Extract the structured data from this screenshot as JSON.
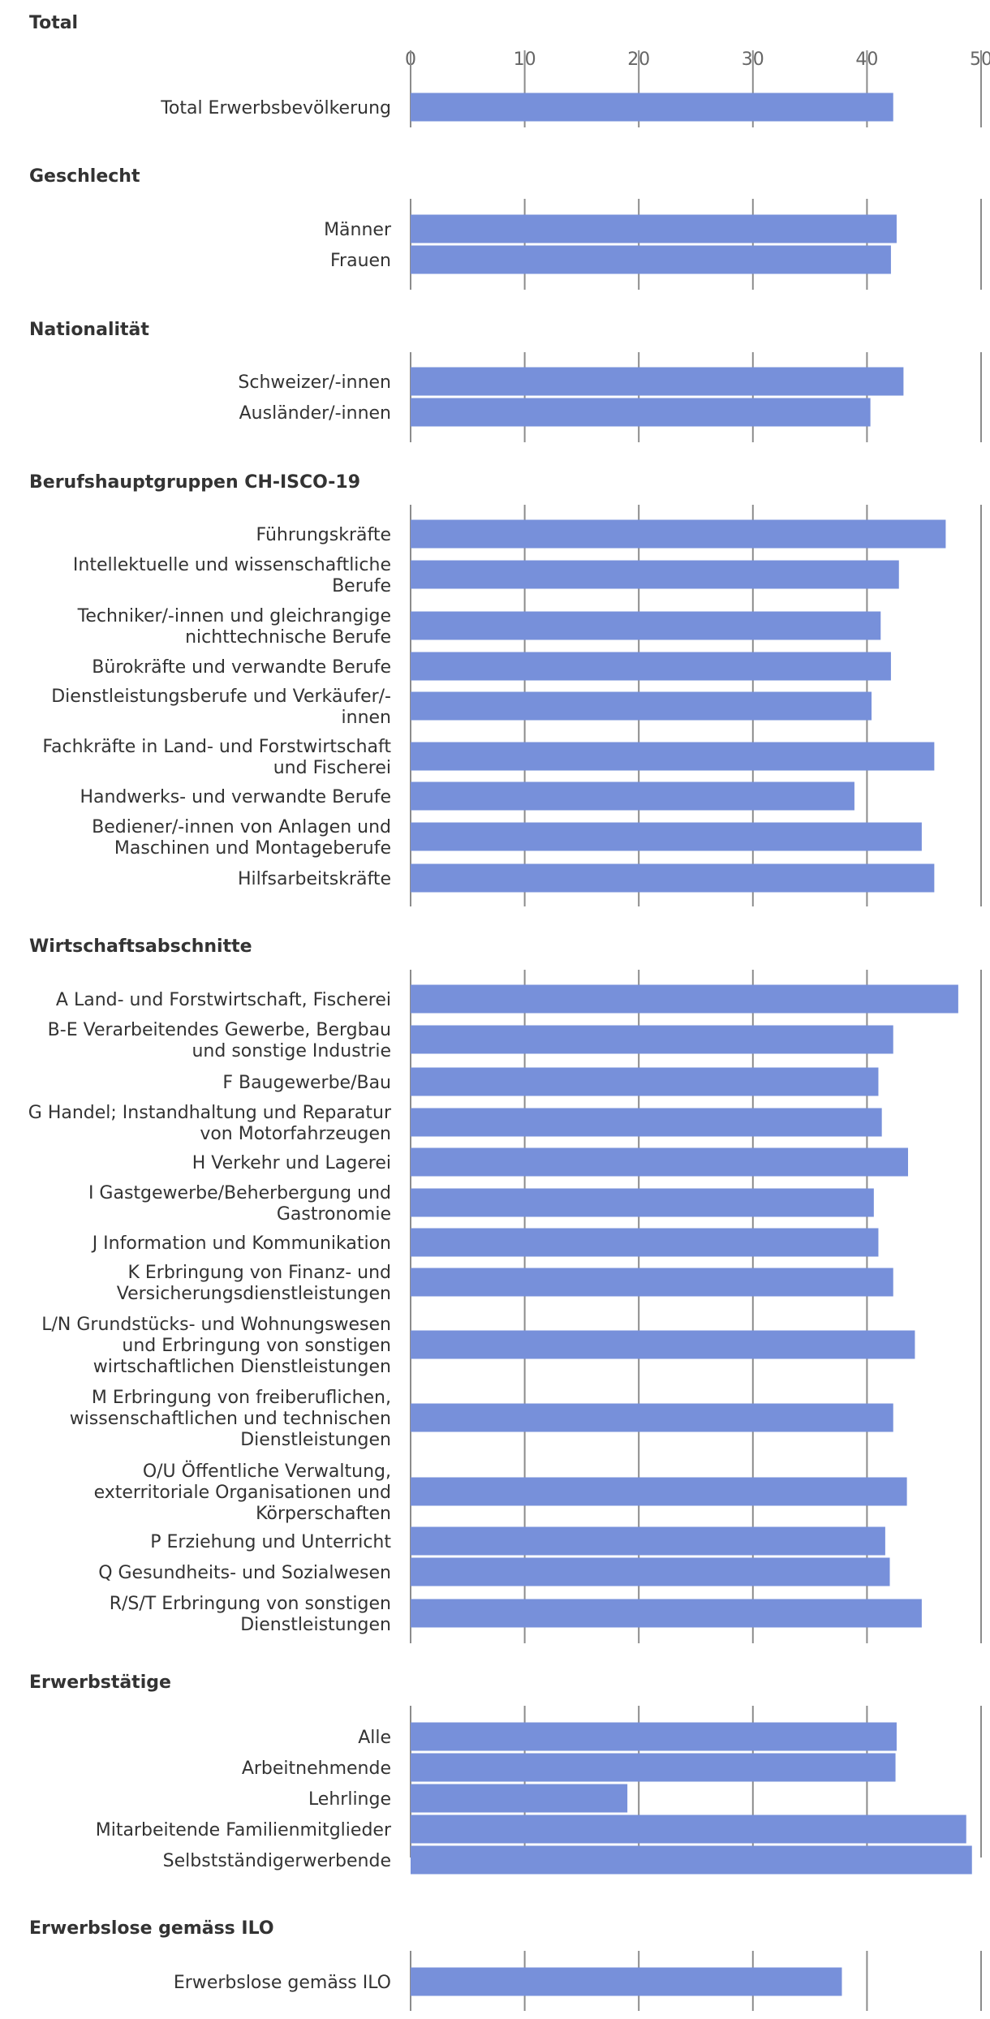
{
  "chart_data": {
    "type": "bar",
    "orientation": "horizontal",
    "xlim": [
      0,
      50
    ],
    "ticks": [
      0,
      10,
      20,
      30,
      40,
      50
    ],
    "bar_color": "#7790da",
    "grid_color": "#8c8c8c",
    "text_color": "#333333",
    "sections": [
      {
        "title": "Total",
        "rows": [
          {
            "label": [
              "Total Erwerbsbevölkerung"
            ],
            "value": 42.3
          }
        ]
      },
      {
        "title": "Geschlecht",
        "rows": [
          {
            "label": [
              "Männer"
            ],
            "value": 42.6
          },
          {
            "label": [
              "Frauen"
            ],
            "value": 42.1
          }
        ]
      },
      {
        "title": "Nationalität",
        "rows": [
          {
            "label": [
              "Schweizer/-innen"
            ],
            "value": 43.2
          },
          {
            "label": [
              "Ausländer/-innen"
            ],
            "value": 40.3
          }
        ]
      },
      {
        "title": "Berufshauptgruppen CH-ISCO-19",
        "rows": [
          {
            "label": [
              "Führungskräfte"
            ],
            "value": 46.9
          },
          {
            "label": [
              "Intellektuelle und wissenschaftliche",
              "Berufe"
            ],
            "value": 42.8
          },
          {
            "label": [
              "Techniker/-innen und gleichrangige",
              "nichttechnische Berufe"
            ],
            "value": 41.2
          },
          {
            "label": [
              "Bürokräfte und verwandte Berufe"
            ],
            "value": 42.1
          },
          {
            "label": [
              "Dienstleistungsberufe und Verkäufer/-",
              "innen"
            ],
            "value": 40.4
          },
          {
            "label": [
              "Fachkräfte in Land- und Forstwirtschaft",
              "und Fischerei"
            ],
            "value": 45.9
          },
          {
            "label": [
              "Handwerks- und verwandte Berufe"
            ],
            "value": 38.9
          },
          {
            "label": [
              "Bediener/-innen von Anlagen und",
              "Maschinen und Montageberufe"
            ],
            "value": 44.8
          },
          {
            "label": [
              "Hilfsarbeitskräfte"
            ],
            "value": 45.9
          }
        ]
      },
      {
        "title": "Wirtschaftsabschnitte",
        "rows": [
          {
            "label": [
              "A Land- und Forstwirtschaft, Fischerei"
            ],
            "value": 48.0
          },
          {
            "label": [
              "B-E Verarbeitendes Gewerbe, Bergbau",
              "und sonstige Industrie"
            ],
            "value": 42.3
          },
          {
            "label": [
              "F Baugewerbe/Bau"
            ],
            "value": 41.0
          },
          {
            "label": [
              "G Handel; Instandhaltung und Reparatur",
              "von Motorfahrzeugen"
            ],
            "value": 41.3
          },
          {
            "label": [
              "H Verkehr und Lagerei"
            ],
            "value": 43.6
          },
          {
            "label": [
              "I Gastgewerbe/Beherbergung und",
              "Gastronomie"
            ],
            "value": 40.6
          },
          {
            "label": [
              "J Information und Kommunikation"
            ],
            "value": 41.0
          },
          {
            "label": [
              "K Erbringung von Finanz- und",
              "Versicherungsdienstleistungen"
            ],
            "value": 42.3
          },
          {
            "label": [
              "L/N Grundstücks- und Wohnungswesen",
              "und Erbringung von sonstigen",
              "wirtschaftlichen Dienstleistungen"
            ],
            "value": 44.2
          },
          {
            "label": [
              "M Erbringung von freiberuflichen,",
              "wissenschaftlichen und technischen",
              "Dienstleistungen"
            ],
            "value": 42.3
          },
          {
            "label": [
              "O/U Öffentliche Verwaltung,",
              "exterritoriale Organisationen und",
              "Körperschaften"
            ],
            "value": 43.5
          },
          {
            "label": [
              "P Erziehung und Unterricht"
            ],
            "value": 41.6
          },
          {
            "label": [
              "Q Gesundheits- und Sozialwesen"
            ],
            "value": 42.0
          },
          {
            "label": [
              "R/S/T Erbringung von sonstigen",
              "Dienstleistungen"
            ],
            "value": 44.8
          }
        ]
      },
      {
        "title": "Erwerbstätige",
        "rows": [
          {
            "label": [
              "Alle"
            ],
            "value": 42.6
          },
          {
            "label": [
              "Arbeitnehmende"
            ],
            "value": 42.5
          },
          {
            "label": [
              "Lehrlinge"
            ],
            "value": 19.0
          },
          {
            "label": [
              "Mitarbeitende Familienmitglieder"
            ],
            "value": 48.7
          },
          {
            "label": [
              "Selbstständigerwerbende"
            ],
            "value": 49.2
          }
        ]
      },
      {
        "title": "Erwerbslose gemäss ILO",
        "rows": [
          {
            "label": [
              "Erwerbslose gemäss ILO"
            ],
            "value": 37.8
          }
        ]
      }
    ]
  }
}
